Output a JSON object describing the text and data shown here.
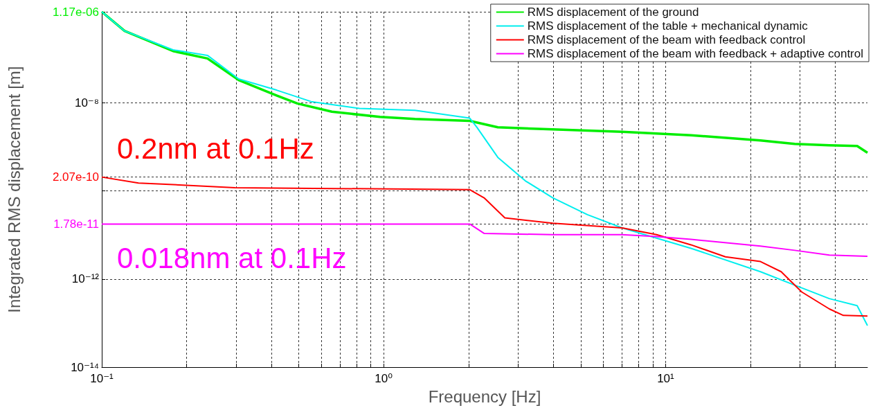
{
  "chart_data": {
    "type": "line",
    "xlabel": "Frequency [Hz]",
    "ylabel": "Integrated RMS displacement [m]",
    "log": "xy",
    "xlim": [
      0.1,
      52
    ],
    "ylim": [
      1e-14,
      1.17e-06
    ],
    "xticks": [
      {
        "value": 0.1,
        "label": "10⁻¹"
      },
      {
        "value": 0.2,
        "label": null
      },
      {
        "value": 0.3,
        "label": null
      },
      {
        "value": 0.4,
        "label": null
      },
      {
        "value": 0.5,
        "label": null
      },
      {
        "value": 0.6,
        "label": null
      },
      {
        "value": 0.7,
        "label": null
      },
      {
        "value": 0.8,
        "label": null
      },
      {
        "value": 0.9,
        "label": null
      },
      {
        "value": 1,
        "label": "10⁰"
      },
      {
        "value": 2,
        "label": null
      },
      {
        "value": 3,
        "label": null
      },
      {
        "value": 4,
        "label": null
      },
      {
        "value": 5,
        "label": null
      },
      {
        "value": 6,
        "label": null
      },
      {
        "value": 7,
        "label": null
      },
      {
        "value": 8,
        "label": null
      },
      {
        "value": 9,
        "label": null
      },
      {
        "value": 10,
        "label": "10¹"
      },
      {
        "value": 20,
        "label": null
      },
      {
        "value": 30,
        "label": null
      },
      {
        "value": 40,
        "label": null
      }
    ],
    "yticks": [
      {
        "value": 1e-14,
        "label": "10⁻¹⁴"
      },
      {
        "value": 1e-12,
        "label": "10⁻¹²"
      },
      {
        "value": 1.78e-11,
        "label": "1.78e-11"
      },
      {
        "value": 1e-10,
        "label": null
      },
      {
        "value": 2.07e-10,
        "label": "2.07e-10"
      },
      {
        "value": 1e-08,
        "label": "10⁻⁸"
      },
      {
        "value": 1.17e-06,
        "label": "1.17e-06"
      }
    ],
    "grid": true,
    "legend": "top right",
    "line_style": "solid",
    "marker": "none",
    "annotations": [
      "0.2nm at 0.1Hz",
      "0.018nm at 0.1Hz"
    ],
    "series": [
      {
        "name": "RMS displacement of the ground",
        "color": "#00ee00",
        "x": [
          0.1,
          0.1205,
          0.179,
          0.237,
          0.306,
          0.417,
          0.494,
          0.655,
          0.97,
          1.29,
          2.02,
          2.54,
          3.98,
          7.01,
          12.3,
          21.7,
          28.7,
          38.1,
          47.8,
          52
        ],
        "values": [
          1.17e-06,
          4.3e-07,
          1.5e-07,
          1.02e-07,
          3.3e-08,
          1.47e-08,
          9.7e-09,
          6.3e-09,
          4.8e-09,
          4.3e-09,
          3.9e-09,
          2.8e-09,
          2.5e-09,
          2.2e-09,
          1.85e-09,
          1.4e-09,
          1.17e-09,
          1.09e-09,
          1.05e-09,
          7.4e-10
        ]
      },
      {
        "name": "RMS displacement of the table + mechanical dynamic",
        "color": "#00eeee",
        "x": [
          0.1,
          0.1205,
          0.179,
          0.237,
          0.306,
          0.417,
          0.553,
          0.82,
          1.29,
          2.02,
          2.14,
          2.54,
          3.18,
          3.98,
          5.28,
          7.01,
          12.3,
          21.7,
          28.7,
          38.1,
          47.8,
          52
        ],
        "values": [
          1.17e-06,
          4.3e-07,
          1.6e-07,
          1.2e-07,
          3.5e-08,
          1.95e-08,
          1.07e-08,
          7.5e-09,
          6.8e-09,
          4.5e-09,
          2.8e-09,
          5.8e-10,
          1.7e-10,
          7e-11,
          2.9e-11,
          1.45e-11,
          5e-12,
          1.47e-12,
          7.3e-13,
          3.6e-13,
          2.5e-13,
          8.8e-14
        ]
      },
      {
        "name": "RMS displacement of the beam with feedback control",
        "color": "#ff0000",
        "x": [
          0.1,
          0.135,
          0.297,
          2.02,
          2.27,
          2.69,
          3.98,
          7.01,
          9.29,
          12.3,
          16.3,
          21.7,
          25.7,
          30.4,
          38.1,
          42.7,
          52
        ],
        "values": [
          2.07e-10,
          1.52e-10,
          1.19e-10,
          1.07e-10,
          7e-11,
          2.45e-11,
          1.85e-11,
          1.45e-11,
          1.02e-11,
          6e-12,
          3.2e-12,
          2.5e-12,
          1.47e-12,
          5.1e-13,
          2.1e-13,
          1.5e-13,
          1.45e-13
        ]
      },
      {
        "name": "RMS displacement of the beam with feedback + adaptive control",
        "color": "#ff00ff",
        "x": [
          0.1,
          2.02,
          2.27,
          3.98,
          7.01,
          9.29,
          12.3,
          21.7,
          28.7,
          38.1,
          52
        ],
        "values": [
          1.78e-11,
          1.78e-11,
          1.09e-11,
          1.02e-11,
          1.02e-11,
          9.2e-12,
          8e-12,
          5.6e-12,
          4.5e-12,
          3.5e-12,
          3.3e-12
        ]
      }
    ]
  }
}
